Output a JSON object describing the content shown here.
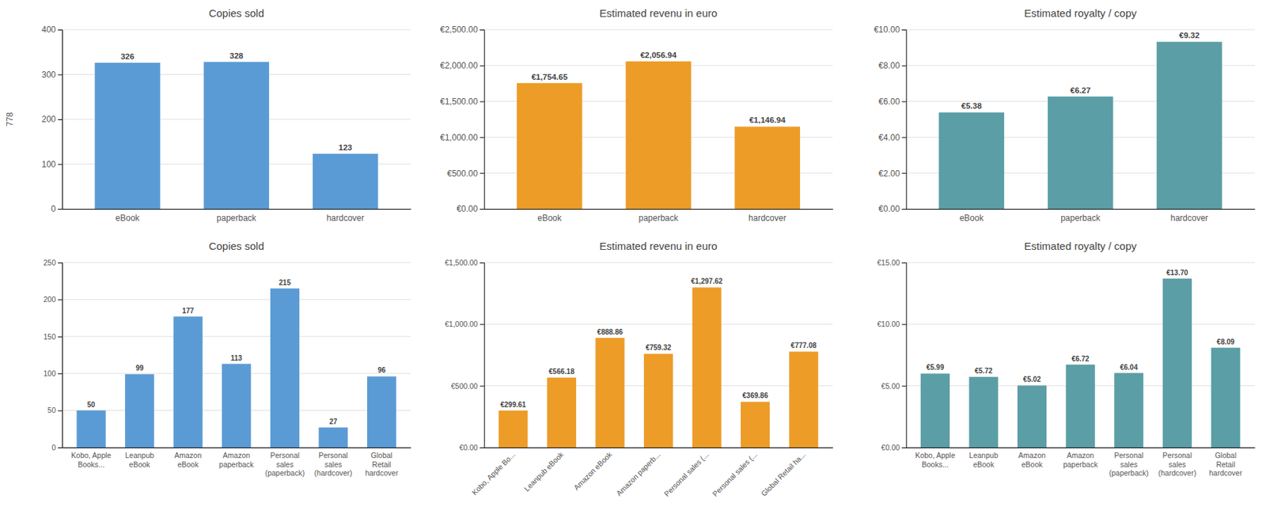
{
  "chart_data": [
    {
      "type": "bar",
      "title": "Copies sold",
      "categories": [
        "eBook",
        "paperback",
        "hardcover"
      ],
      "values": [
        326,
        328,
        123
      ],
      "color": "#5b9bd5",
      "ylim": [
        0,
        400
      ],
      "yticks": [
        0,
        100,
        200,
        300,
        400
      ],
      "y_label": "778",
      "grid": true,
      "data_labels": true
    },
    {
      "type": "bar",
      "title": "Estimated revenu in euro",
      "categories": [
        "eBook",
        "paperback",
        "hardcover"
      ],
      "values": [
        1754.65,
        2056.94,
        1146.94
      ],
      "value_labels": [
        "€1,754.65",
        "€2,056.94",
        "€1,146.94"
      ],
      "color": "#ed9c28",
      "ylim": [
        0,
        2500
      ],
      "yticks": [
        {
          "value": 0,
          "label": "€0.00"
        },
        {
          "value": 500,
          "label": "€500.00"
        },
        {
          "value": 1000,
          "label": "€1,000.00"
        },
        {
          "value": 1500,
          "label": "€1,500.00"
        },
        {
          "value": 2000,
          "label": "€2,000.00"
        },
        {
          "value": 2500,
          "label": "€2,500.00"
        }
      ],
      "grid": true,
      "data_labels": true
    },
    {
      "type": "bar",
      "title": "Estimated royalty / copy",
      "categories": [
        "eBook",
        "paperback",
        "hardcover"
      ],
      "values": [
        5.38,
        6.27,
        9.32
      ],
      "value_labels": [
        "€5.38",
        "€6.27",
        "€9.32"
      ],
      "color": "#5b9ea6",
      "ylim": [
        0,
        10
      ],
      "yticks": [
        {
          "value": 0,
          "label": "€0.00"
        },
        {
          "value": 2,
          "label": "€2.00"
        },
        {
          "value": 4,
          "label": "€4.00"
        },
        {
          "value": 6,
          "label": "€6.00"
        },
        {
          "value": 8,
          "label": "€8.00"
        },
        {
          "value": 10,
          "label": "€10.00"
        }
      ],
      "grid": true,
      "data_labels": true
    },
    {
      "type": "bar",
      "title": "Copies sold",
      "categories": [
        "Kobo, Apple\nBooks...",
        "Leanpub\neBook",
        "Amazon\neBook",
        "Amazon\npaperback",
        "Personal\nsales\n(paperback)",
        "Personal\nsales\n(hardcover)",
        "Global\nRetail\nhardcover"
      ],
      "values": [
        50,
        99,
        177,
        113,
        215,
        27,
        96
      ],
      "color": "#5b9bd5",
      "ylim": [
        0,
        250
      ],
      "yticks": [
        0,
        50,
        100,
        150,
        200,
        250
      ],
      "grid": true,
      "data_labels": true
    },
    {
      "type": "bar",
      "title": "Estimated revenu in euro",
      "categories": [
        "Kobo, Apple Bo...",
        "Leanpub eBook",
        "Amazon eBook",
        "Amazon paperb...",
        "Personal sales (...",
        "Personal sales (...",
        "Global Retail ha..."
      ],
      "values": [
        299.61,
        566.18,
        888.86,
        759.32,
        1297.62,
        369.86,
        777.08
      ],
      "value_labels": [
        "€299.61",
        "€566.18",
        "€888.86",
        "€759.32",
        "€1,297.62",
        "€369.86",
        "€777.08"
      ],
      "color": "#ed9c28",
      "ylim": [
        0,
        1500
      ],
      "yticks": [
        {
          "value": 0,
          "label": "€0.00"
        },
        {
          "value": 500,
          "label": "€500.00"
        },
        {
          "value": 1000,
          "label": "€1,000.00"
        },
        {
          "value": 1500,
          "label": "€1,500.00"
        }
      ],
      "grid": true,
      "data_labels": true
    },
    {
      "type": "bar",
      "title": "Estimated royalty / copy",
      "categories": [
        "Kobo, Apple\nBooks...",
        "Leanpub\neBook",
        "Amazon\neBook",
        "Amazon\npaperback",
        "Personal\nsales\n(paperback)",
        "Personal\nsales\n(hardcover)",
        "Global\nRetail\nhardcover"
      ],
      "values": [
        5.99,
        5.72,
        5.02,
        6.72,
        6.04,
        13.7,
        8.09
      ],
      "value_labels": [
        "€5.99",
        "€5.72",
        "€5.02",
        "€6.72",
        "€6.04",
        "€13.70",
        "€8.09"
      ],
      "color": "#5b9ea6",
      "ylim": [
        0,
        15
      ],
      "yticks": [
        {
          "value": 0,
          "label": "€0.00"
        },
        {
          "value": 5,
          "label": "€5.00"
        },
        {
          "value": 10,
          "label": "€10.00"
        },
        {
          "value": 15,
          "label": "€15.00"
        }
      ],
      "grid": true,
      "data_labels": true
    }
  ]
}
